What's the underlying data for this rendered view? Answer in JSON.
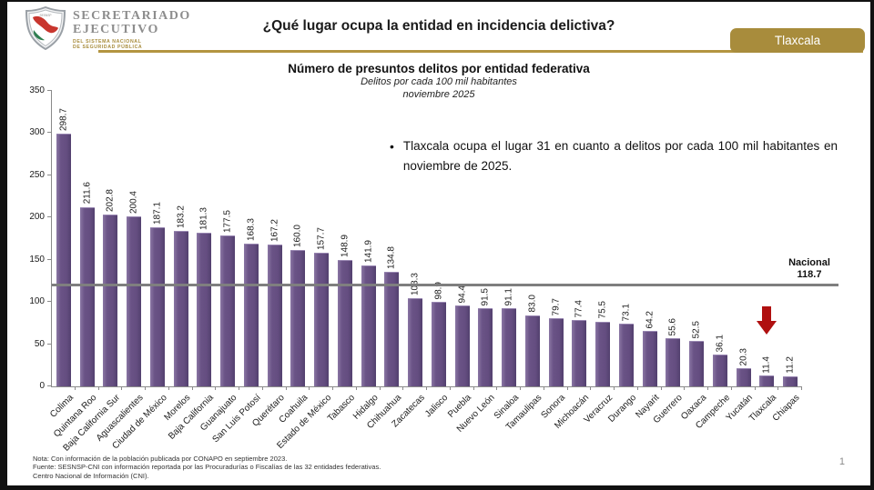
{
  "header": {
    "logo": {
      "title_line1": "SECRETARIADO",
      "title_line2": "EJECUTIVO",
      "subtitle_line1": "DEL SISTEMA NACIONAL",
      "subtitle_line2": "DE SEGURIDAD PÚBLICA"
    },
    "title": "¿Qué lugar ocupa la entidad en incidencia delictiva?",
    "state_badge": "Tlaxcala"
  },
  "annotation": {
    "bullet": "•",
    "text": "Tlaxcala ocupa el lugar 31 en cuanto a delitos por cada 100 mil habitantes en noviembre de 2025."
  },
  "chart_data": {
    "type": "bar",
    "title": "Número de presuntos delitos por entidad federativa",
    "subtitle1": "Delitos por cada 100 mil habitantes",
    "subtitle2": "noviembre 2025",
    "categories": [
      "Colima",
      "Quintana Roo",
      "Baja California Sur",
      "Aguascalientes",
      "Ciudad de México",
      "Morelos",
      "Baja California",
      "Guanajuato",
      "San Luis Potosí",
      "Querétaro",
      "Coahuila",
      "Estado de México",
      "Tabasco",
      "Hidalgo",
      "Chihuahua",
      "Zacatecas",
      "Jalisco",
      "Puebla",
      "Nuevo León",
      "Sinaloa",
      "Tamaulipas",
      "Sonora",
      "Michoacán",
      "Veracruz",
      "Durango",
      "Nayarit",
      "Guerrero",
      "Oaxaca",
      "Campeche",
      "Yucatán",
      "Tlaxcala",
      "Chiapas"
    ],
    "values": [
      298.7,
      211.6,
      202.8,
      200.4,
      187.1,
      183.2,
      181.3,
      177.5,
      168.3,
      167.2,
      160.0,
      157.7,
      148.9,
      141.9,
      134.8,
      103.3,
      98.9,
      94.4,
      91.5,
      91.1,
      83.0,
      79.7,
      77.4,
      75.5,
      73.1,
      64.2,
      55.6,
      52.5,
      36.1,
      20.3,
      11.4,
      11.2
    ],
    "ylim": [
      0,
      350
    ],
    "yticks": [
      0,
      50,
      100,
      150,
      200,
      250,
      300,
      350
    ],
    "grid": false,
    "reference_line": {
      "label": "Nacional",
      "value": "118.7",
      "numeric": 118.7
    },
    "highlight_category": "Tlaxcala",
    "bar_color": "#6a5386",
    "highlight_arrow_color": "#b01010",
    "national_line_color": "#7f7f7f"
  },
  "footer": {
    "note1": "Nota: Con información de la población publicada por CONAPO en septiembre 2023.",
    "note2": "Fuente: SESNSP-CNI con información reportada por las Procuradurías o Fiscalías de las 32 entidades federativas.",
    "note3": "Centro Nacional de Información (CNI).",
    "page_number": "1"
  }
}
